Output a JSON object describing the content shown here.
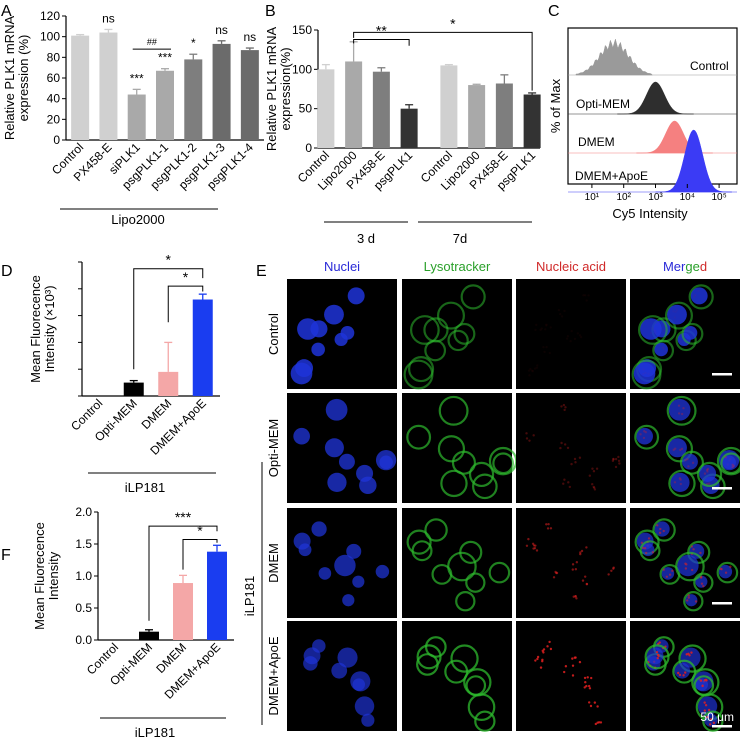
{
  "colors": {
    "light_gray": "#d0d0d0",
    "mid_gray": "#a9a9a9",
    "dark_gray": "#7e7e7e",
    "darker_gray": "#6b6b6b",
    "black_bar": "#333333",
    "pink": "#f4a7a7",
    "blue": "#1a3df0",
    "hist_gray": "#9a9a9a",
    "hist_black": "#2e2e2e",
    "hist_pink": "#f58080",
    "hist_blue": "#3b3bf5",
    "nuclei_label": "#2a2ad8",
    "lyso_label": "#2aa02a",
    "acid_label": "#d02a2a"
  },
  "chart_data": [
    {
      "panel": "A",
      "type": "bar",
      "ylabel": "Relative PLK1 mRNA expression (%)",
      "ylim": [
        0,
        120
      ],
      "yticks": [
        "0",
        "20",
        "40",
        "60",
        "80",
        "100",
        "120"
      ],
      "categories": [
        "Control",
        "PX458-E",
        "siPLK1",
        "psgPLK1-1",
        "psgPLK1-2",
        "psgPLK1-3",
        "psgPLK1-4"
      ],
      "values": [
        101,
        104,
        44,
        67,
        78,
        93,
        87
      ],
      "errors": [
        1,
        3,
        5,
        2,
        5,
        3,
        2
      ],
      "significance": [
        "",
        "ns",
        "***",
        "***",
        "*",
        "ns",
        "ns"
      ],
      "bracket_label": "##",
      "group_label": "Lipo2000"
    },
    {
      "panel": "B",
      "type": "bar",
      "ylabel": "Relative PLK1 mRNA expression(%)",
      "ylim": [
        0,
        150
      ],
      "yticks": [
        "0",
        "50",
        "100",
        "150"
      ],
      "categories": [
        "Control",
        "Lipo2000",
        "PX458-E",
        "psgPLK1",
        "Control",
        "Lipo2000",
        "PX458-E",
        "psgPLK1"
      ],
      "values": [
        100,
        110,
        97,
        50,
        105,
        80,
        82,
        68
      ],
      "errors": [
        6,
        25,
        5,
        5,
        1,
        1,
        11,
        2
      ],
      "group_labels": [
        "3 d",
        "7d"
      ],
      "brackets": [
        {
          "label": "**"
        },
        {
          "label": "*"
        }
      ]
    },
    {
      "panel": "C",
      "type": "area",
      "ylabel": "% of Max",
      "xlabel": "Cy5 Intensity",
      "xticks": [
        "10¹",
        "10²",
        "10³",
        "10⁴",
        "10⁵"
      ],
      "series": [
        {
          "name": "Control",
          "peak_log10": 1.7
        },
        {
          "name": "Opti-MEM",
          "peak_log10": 3.0
        },
        {
          "name": "DMEM",
          "peak_log10": 3.6
        },
        {
          "name": "DMEM+ApoE",
          "peak_log10": 4.2
        }
      ]
    },
    {
      "panel": "D",
      "type": "bar",
      "ylabel": "Mean Fluorecence Intensity (×10³)",
      "ylim": [
        0,
        10
      ],
      "categories": [
        "Control",
        "Opti-MEM",
        "DMEM",
        "DMEM+ApoE"
      ],
      "values": [
        0,
        1.0,
        1.8,
        7.2
      ],
      "errors": [
        0,
        0.15,
        2.2,
        0.4
      ],
      "brackets": [
        {
          "label": "*"
        },
        {
          "label": "*"
        }
      ],
      "group_label": "iLP181"
    },
    {
      "panel": "F",
      "type": "bar",
      "ylabel": "Mean Fluorecence Intensity",
      "ylim": [
        0,
        2.0
      ],
      "yticks": [
        "0.0",
        "0.5",
        "1.0",
        "1.5",
        "2.0"
      ],
      "categories": [
        "Control",
        "Opti-MEM",
        "DMEM",
        "DMEM+ApoE"
      ],
      "values": [
        0,
        0.13,
        0.89,
        1.38
      ],
      "errors": [
        0,
        0.03,
        0.12,
        0.1
      ],
      "brackets": [
        {
          "label": "***"
        },
        {
          "label": "*"
        }
      ],
      "group_label": "iLP181"
    }
  ],
  "panel_e": {
    "panel_letter": "E",
    "columns": [
      "Nuclei",
      "Lysotracker",
      "Nucleic acid",
      "Merged"
    ],
    "rows": [
      "Control",
      "Opti-MEM",
      "DMEM",
      "DMEM+ApoE"
    ],
    "group_label": "iLP181",
    "scale_label": "50 μm"
  },
  "panel_letters": [
    "A",
    "B",
    "C",
    "D",
    "E",
    "F"
  ]
}
